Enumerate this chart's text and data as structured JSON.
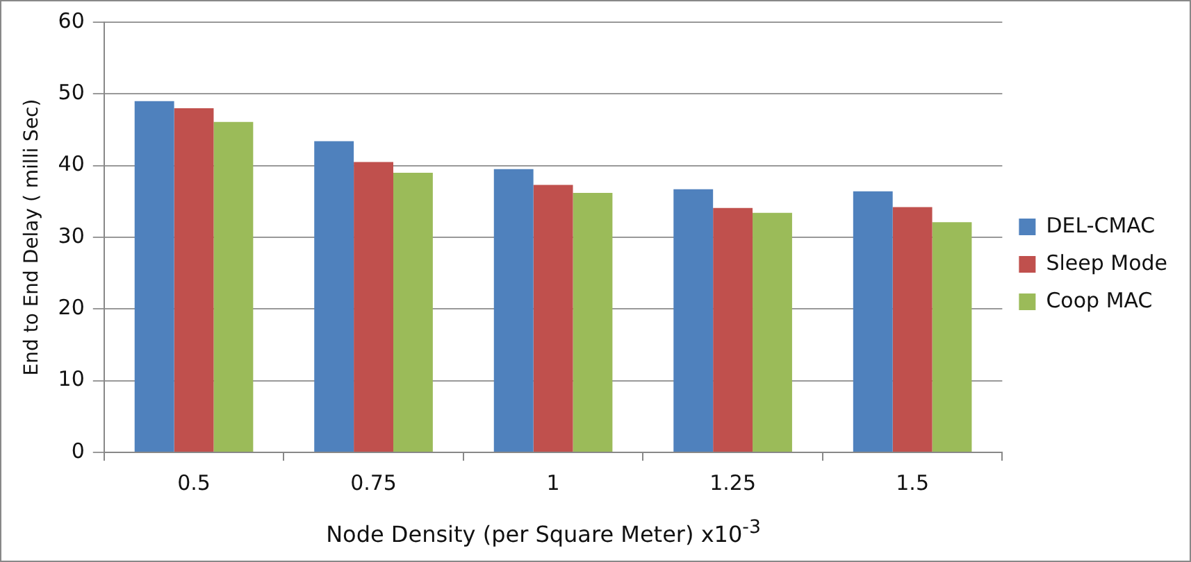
{
  "chart_data": {
    "type": "bar",
    "xlabel": "Node Density (per Square Meter)  x10$^{-3}$",
    "ylabel": "End to End Delay ( milli Sec)",
    "categories": [
      "0.5",
      "0.75",
      "1",
      "1.25",
      "1.5"
    ],
    "series": [
      {
        "name": "DEL-CMAC",
        "color": "#4f81bd",
        "values": [
          49.0,
          43.4,
          39.5,
          36.7,
          36.4
        ]
      },
      {
        "name": "Sleep Mode",
        "color": "#c0504d",
        "values": [
          48.0,
          40.5,
          37.3,
          34.1,
          34.2
        ]
      },
      {
        "name": "Coop MAC",
        "color": "#9bbb59",
        "values": [
          46.1,
          39.0,
          36.2,
          33.4,
          32.1
        ]
      }
    ],
    "ylim": [
      0,
      60
    ],
    "yticks": [
      0,
      10,
      20,
      30,
      40,
      50,
      60
    ],
    "grid": "y",
    "legend": "right"
  }
}
